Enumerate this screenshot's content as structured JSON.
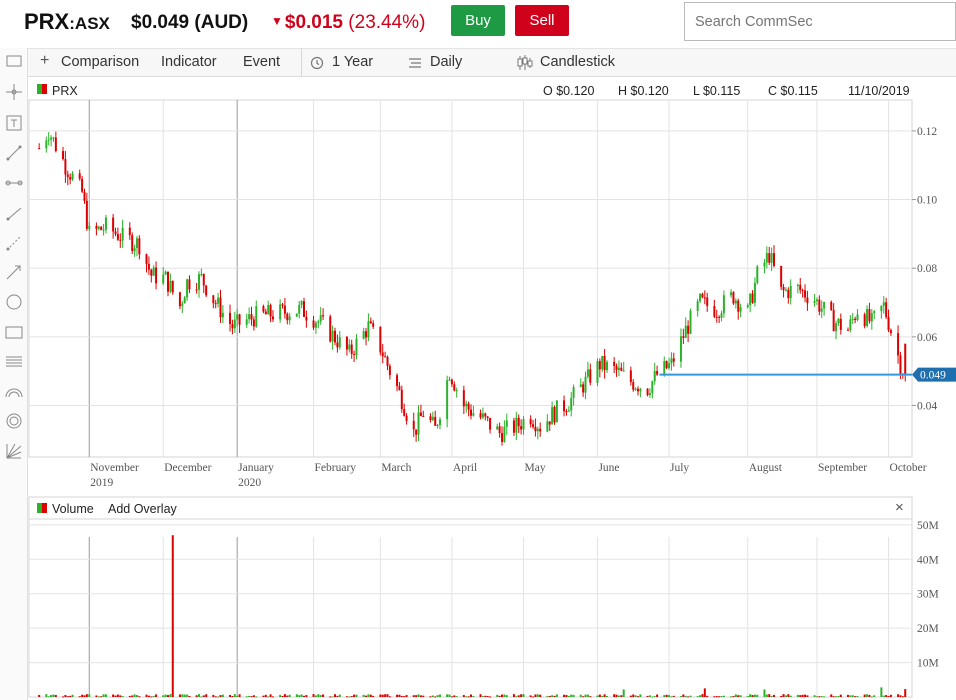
{
  "header": {
    "symbol": "PRX",
    "exchange": ":ASX",
    "price": "$0.049 (AUD)",
    "change_amount": "$0.015",
    "change_pct": "(23.44%)",
    "buy_label": "Buy",
    "sell_label": "Sell",
    "search_placeholder": "Search CommSec"
  },
  "toolbar": {
    "comparison_label": "Comparison",
    "indicator_label": "Indicator",
    "event_label": "Event",
    "range_label": "1 Year",
    "interval_label": "Daily",
    "chart_type_label": "Candlestick"
  },
  "tools": [
    "pointer-tool",
    "crosshair-tool",
    "text-tool",
    "line-tool",
    "horizontal-line-tool",
    "ray-tool",
    "trend-tool",
    "arrow-tool",
    "circle-tool",
    "rectangle-tool",
    "fibonacci-tool",
    "arc-tool",
    "spiral-tool",
    "gann-tool"
  ],
  "price_panel": {
    "symbol_label": "PRX",
    "open": "O $0.120",
    "high": "H $0.120",
    "low": "L $0.115",
    "close": "C $0.115",
    "date": "11/10/2019",
    "current_price_tag": "0.049"
  },
  "volume_panel": {
    "label": "Volume",
    "add_overlay": "Add Overlay",
    "close_symbol": "×"
  },
  "colors": {
    "up": "#2ab22a",
    "down": "#dd0000",
    "last_price_line": "#3399dd",
    "buy": "#1e9a45",
    "sell": "#d0021b"
  },
  "chart_data": [
    {
      "type": "candlestick",
      "name": "PRX",
      "y_ticks": [
        "0.12",
        "0.10",
        "0.08",
        "0.06",
        "0.04"
      ],
      "ylim": [
        0.025,
        0.129
      ],
      "x_ticks": [
        {
          "label": "November",
          "sub": "2019",
          "date": "2019-11-01"
        },
        {
          "label": "December",
          "sub": "",
          "date": "2019-12-02"
        },
        {
          "label": "January",
          "sub": "2020",
          "date": "2020-01-02"
        },
        {
          "label": "February",
          "sub": "",
          "date": "2020-02-03"
        },
        {
          "label": "March",
          "sub": "",
          "date": "2020-03-02"
        },
        {
          "label": "April",
          "sub": "",
          "date": "2020-04-01"
        },
        {
          "label": "May",
          "sub": "",
          "date": "2020-05-01"
        },
        {
          "label": "June",
          "sub": "",
          "date": "2020-06-01"
        },
        {
          "label": "July",
          "sub": "",
          "date": "2020-07-01"
        },
        {
          "label": "August",
          "sub": "",
          "date": "2020-08-03"
        },
        {
          "label": "September",
          "sub": "",
          "date": "2020-09-01"
        },
        {
          "label": "October",
          "sub": "",
          "date": "2020-10-01"
        }
      ],
      "close_path": [
        [
          "2019-10-11",
          0.115
        ],
        [
          "2019-10-15",
          0.12
        ],
        [
          "2019-10-22",
          0.11
        ],
        [
          "2019-10-29",
          0.102
        ],
        [
          "2019-11-01",
          0.09
        ],
        [
          "2019-11-08",
          0.092
        ],
        [
          "2019-11-15",
          0.089
        ],
        [
          "2019-11-22",
          0.087
        ],
        [
          "2019-11-27",
          0.078
        ],
        [
          "2019-12-03",
          0.077
        ],
        [
          "2019-12-09",
          0.069
        ],
        [
          "2019-12-12",
          0.076
        ],
        [
          "2019-12-18",
          0.077
        ],
        [
          "2019-12-23",
          0.071
        ],
        [
          "2019-12-31",
          0.063
        ],
        [
          "2020-01-10",
          0.066
        ],
        [
          "2020-01-20",
          0.067
        ],
        [
          "2020-01-29",
          0.068
        ],
        [
          "2020-02-06",
          0.064
        ],
        [
          "2020-02-13",
          0.059
        ],
        [
          "2020-02-18",
          0.055
        ],
        [
          "2020-02-21",
          0.058
        ],
        [
          "2020-02-26",
          0.063
        ],
        [
          "2020-03-02",
          0.057
        ],
        [
          "2020-03-06",
          0.05
        ],
        [
          "2020-03-11",
          0.042
        ],
        [
          "2020-03-16",
          0.032
        ],
        [
          "2020-03-20",
          0.038
        ],
        [
          "2020-03-25",
          0.033
        ],
        [
          "2020-03-31",
          0.05
        ],
        [
          "2020-04-06",
          0.04
        ],
        [
          "2020-04-14",
          0.036
        ],
        [
          "2020-04-21",
          0.032
        ],
        [
          "2020-04-28",
          0.034
        ],
        [
          "2020-05-04",
          0.037
        ],
        [
          "2020-05-08",
          0.034
        ],
        [
          "2020-05-14",
          0.038
        ],
        [
          "2020-05-20",
          0.041
        ],
        [
          "2020-05-26",
          0.046
        ],
        [
          "2020-06-02",
          0.052
        ],
        [
          "2020-06-09",
          0.05
        ],
        [
          "2020-06-15",
          0.047
        ],
        [
          "2020-06-22",
          0.045
        ],
        [
          "2020-06-26",
          0.049
        ],
        [
          "2020-07-02",
          0.052
        ],
        [
          "2020-07-08",
          0.062
        ],
        [
          "2020-07-14",
          0.07
        ],
        [
          "2020-07-21",
          0.068
        ],
        [
          "2020-07-28",
          0.072
        ],
        [
          "2020-08-03",
          0.067
        ],
        [
          "2020-08-07",
          0.078
        ],
        [
          "2020-08-12",
          0.084
        ],
        [
          "2020-08-17",
          0.073
        ],
        [
          "2020-08-24",
          0.074
        ],
        [
          "2020-08-31",
          0.071
        ],
        [
          "2020-09-07",
          0.065
        ],
        [
          "2020-09-14",
          0.062
        ],
        [
          "2020-09-18",
          0.068
        ],
        [
          "2020-09-24",
          0.064
        ],
        [
          "2020-09-29",
          0.069
        ],
        [
          "2020-10-02",
          0.062
        ],
        [
          "2020-10-06",
          0.052
        ],
        [
          "2020-10-08",
          0.049
        ]
      ],
      "last_price": 0.049
    },
    {
      "type": "bar",
      "name": "Volume",
      "y_ticks": [
        "50M",
        "40M",
        "30M",
        "20M",
        "10M"
      ],
      "ylim": [
        0,
        52
      ],
      "unit": "M",
      "spikes": [
        [
          "2019-12-06",
          47
        ],
        [
          "2020-06-12",
          2.2
        ],
        [
          "2020-07-16",
          2.5
        ],
        [
          "2020-08-10",
          2.2
        ],
        [
          "2020-09-28",
          2.8
        ],
        [
          "2020-10-08",
          2.3
        ]
      ],
      "base_level": 0.5
    }
  ]
}
